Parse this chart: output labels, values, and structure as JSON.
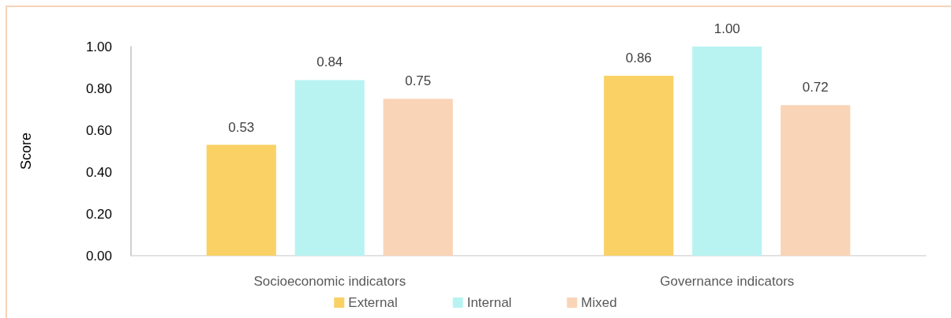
{
  "chart_data": {
    "type": "bar",
    "categories": [
      "Socioeconomic indicators",
      "Governance indicators"
    ],
    "series": [
      {
        "name": "External",
        "color": "#f9d165",
        "values": [
          0.53,
          0.86
        ],
        "value_labels": [
          "0.53",
          "0.86"
        ]
      },
      {
        "name": "Internal",
        "color": "#b8f3f2",
        "values": [
          0.84,
          1.0
        ],
        "value_labels": [
          "0.84",
          "1.00"
        ]
      },
      {
        "name": "Mixed",
        "color": "#fad4b7",
        "values": [
          0.75,
          0.72
        ],
        "value_labels": [
          "0.75",
          "0.72"
        ]
      }
    ],
    "ylabel": "Score",
    "ylim": [
      0,
      1
    ],
    "yticks": [
      {
        "value": 0,
        "label": "0.00"
      },
      {
        "value": 0.2,
        "label": "0.20"
      },
      {
        "value": 0.4,
        "label": "0.40"
      },
      {
        "value": 0.6,
        "label": "0.60"
      },
      {
        "value": 0.8,
        "label": "0.80"
      },
      {
        "value": 1,
        "label": "1.00"
      }
    ],
    "grid": false,
    "legend": "bottom"
  }
}
